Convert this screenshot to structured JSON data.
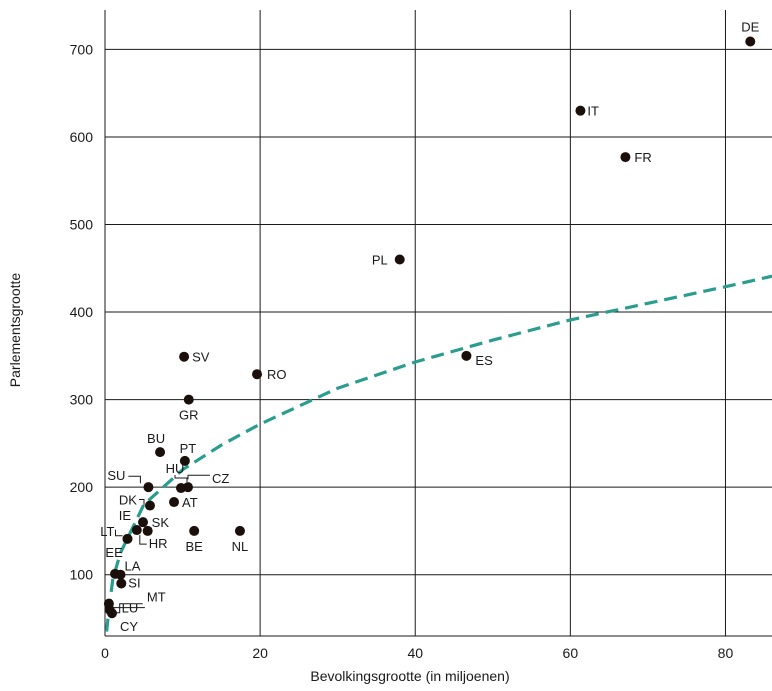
{
  "chart_data": {
    "type": "scatter",
    "xlabel": "Bevolkingsgrootte (in miljoenen)",
    "ylabel": "Parlementsgrootte",
    "xlim": [
      0,
      86
    ],
    "ylim": [
      30,
      745
    ],
    "x_ticks": [
      0,
      20,
      40,
      60,
      80
    ],
    "y_ticks": [
      100,
      200,
      300,
      400,
      500,
      600,
      700
    ],
    "grid": true,
    "colors": {
      "points": "#1a0f0a",
      "curve": "#2a9d8f",
      "grid": "#1a1a1a"
    },
    "points": [
      {
        "label": "DE",
        "x": 83.2,
        "y": 709
      },
      {
        "label": "IT",
        "x": 61.3,
        "y": 630
      },
      {
        "label": "FR",
        "x": 67.1,
        "y": 577
      },
      {
        "label": "PL",
        "x": 38.0,
        "y": 460
      },
      {
        "label": "ES",
        "x": 46.6,
        "y": 350
      },
      {
        "label": "SV",
        "x": 10.2,
        "y": 349
      },
      {
        "label": "RO",
        "x": 19.6,
        "y": 329
      },
      {
        "label": "GR",
        "x": 10.8,
        "y": 300
      },
      {
        "label": "BU",
        "x": 7.1,
        "y": 240
      },
      {
        "label": "PT",
        "x": 10.3,
        "y": 230
      },
      {
        "label": "SU",
        "x": 5.6,
        "y": 200
      },
      {
        "label": "HU",
        "x": 9.8,
        "y": 199
      },
      {
        "label": "CZ",
        "x": 10.7,
        "y": 200
      },
      {
        "label": "DK",
        "x": 5.8,
        "y": 179
      },
      {
        "label": "AT",
        "x": 8.9,
        "y": 183
      },
      {
        "label": "IE",
        "x": 4.9,
        "y": 160
      },
      {
        "label": "SK",
        "x": 5.5,
        "y": 150
      },
      {
        "label": "LT",
        "x": 2.9,
        "y": 141
      },
      {
        "label": "HR",
        "x": 4.1,
        "y": 151
      },
      {
        "label": "BE",
        "x": 11.5,
        "y": 150
      },
      {
        "label": "NL",
        "x": 17.4,
        "y": 150
      },
      {
        "label": "EE",
        "x": 1.3,
        "y": 101
      },
      {
        "label": "LA",
        "x": 2.0,
        "y": 100
      },
      {
        "label": "SI",
        "x": 2.1,
        "y": 90
      },
      {
        "label": "LU",
        "x": 0.6,
        "y": 60
      },
      {
        "label": "MT",
        "x": 0.5,
        "y": 67
      },
      {
        "label": "CY",
        "x": 0.9,
        "y": 56
      }
    ],
    "trend_curve": {
      "style": "dashed",
      "description_of_fit": "cube root law",
      "points": [
        {
          "x": 0.2,
          "y": 35
        },
        {
          "x": 0.5,
          "y": 60
        },
        {
          "x": 1,
          "y": 95
        },
        {
          "x": 2,
          "y": 125
        },
        {
          "x": 5,
          "y": 180
        },
        {
          "x": 10,
          "y": 220
        },
        {
          "x": 15,
          "y": 248
        },
        {
          "x": 20,
          "y": 272
        },
        {
          "x": 30,
          "y": 313
        },
        {
          "x": 40,
          "y": 343
        },
        {
          "x": 50,
          "y": 368
        },
        {
          "x": 60,
          "y": 391
        },
        {
          "x": 70,
          "y": 410
        },
        {
          "x": 80,
          "y": 429
        },
        {
          "x": 86,
          "y": 441
        }
      ]
    }
  }
}
